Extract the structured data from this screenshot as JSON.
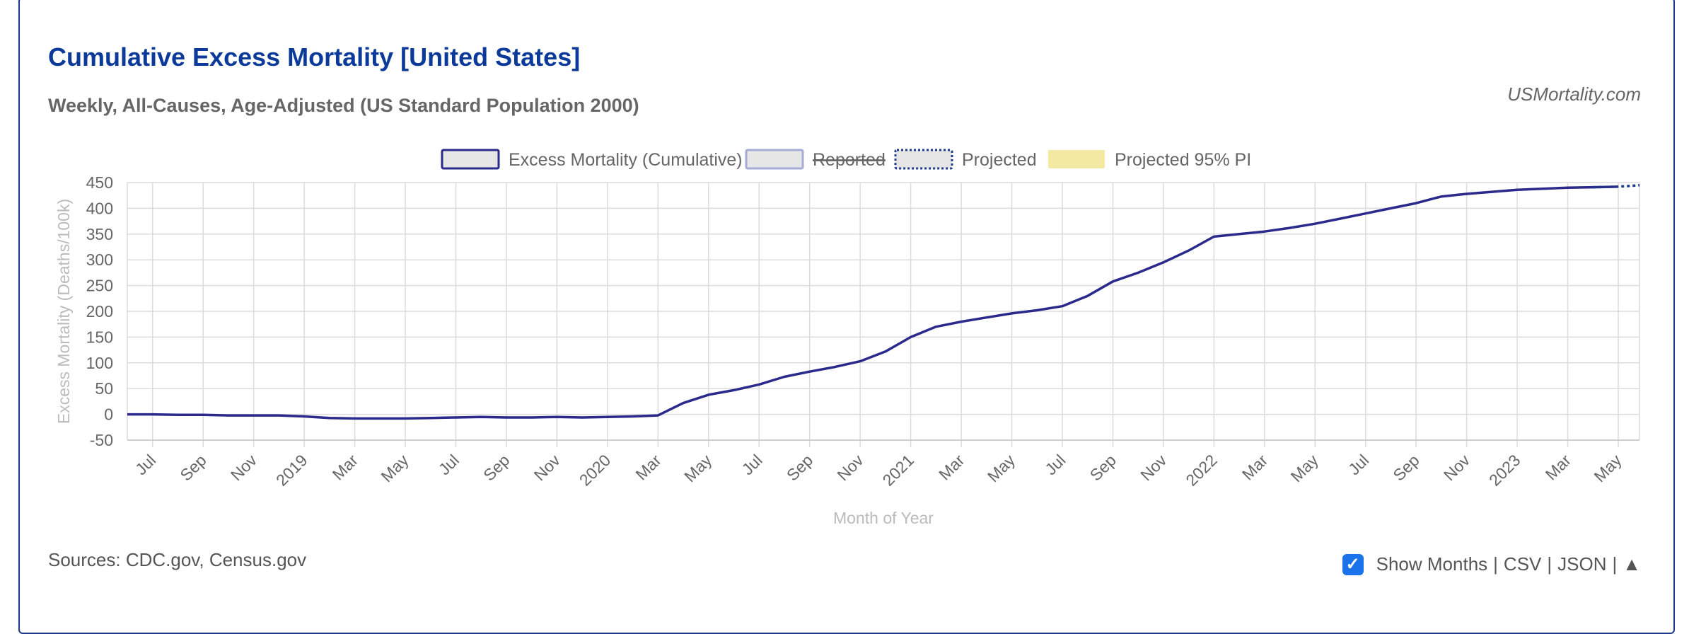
{
  "header": {
    "title": "Cumulative Excess Mortality [United States]",
    "subtitle": "Weekly, All-Causes, Age-Adjusted (US Standard Population 2000)",
    "brand": "USMortality.com"
  },
  "footer": {
    "sources": "Sources: CDC.gov, Census.gov",
    "show_months_label": "Show Months",
    "sep1": "|",
    "csv_label": "CSV",
    "sep2": "|",
    "json_label": "JSON",
    "sep3": "|",
    "up_label": "▲",
    "check_glyph": "✓"
  },
  "chart_data": {
    "type": "line",
    "title": "Cumulative Excess Mortality [United States]",
    "xlabel": "Month of Year",
    "ylabel": "Excess Mortality (Deaths/100k)",
    "ylim": [
      -50,
      450
    ],
    "yticks": [
      450,
      400,
      350,
      300,
      250,
      200,
      150,
      100,
      50,
      0,
      -50
    ],
    "xticks": [
      "Jul",
      "Sep",
      "Nov",
      "2019",
      "Mar",
      "May",
      "Jul",
      "Sep",
      "Nov",
      "2020",
      "Mar",
      "May",
      "Jul",
      "Sep",
      "Nov",
      "2021",
      "Mar",
      "May",
      "Jul",
      "Sep",
      "Nov",
      "2022",
      "Mar",
      "May",
      "Jul",
      "Sep",
      "Nov",
      "2023",
      "Mar",
      "May"
    ],
    "grid": true,
    "legend_position": "top",
    "legend": [
      {
        "label": "Excess Mortality (Cumulative)",
        "style": "solid",
        "color": "#2b2a8c"
      },
      {
        "label": "Reported",
        "style": "solid-light",
        "color": "#a7acd6",
        "hidden": true
      },
      {
        "label": "Projected",
        "style": "dotted",
        "color": "#1f3a8a"
      },
      {
        "label": "Projected 95% PI",
        "style": "fill",
        "color": "#f3e9a3"
      }
    ],
    "series": [
      {
        "name": "Excess Mortality (Cumulative)",
        "color": "#2b2a8c",
        "x": [
          "2018-06",
          "2018-07",
          "2018-08",
          "2018-09",
          "2018-10",
          "2018-11",
          "2018-12",
          "2019-01",
          "2019-02",
          "2019-03",
          "2019-04",
          "2019-05",
          "2019-06",
          "2019-07",
          "2019-08",
          "2019-09",
          "2019-10",
          "2019-11",
          "2019-12",
          "2020-01",
          "2020-02",
          "2020-03",
          "2020-04",
          "2020-05",
          "2020-06",
          "2020-07",
          "2020-08",
          "2020-09",
          "2020-10",
          "2020-11",
          "2020-12",
          "2021-01",
          "2021-02",
          "2021-03",
          "2021-04",
          "2021-05",
          "2021-06",
          "2021-07",
          "2021-08",
          "2021-09",
          "2021-10",
          "2021-11",
          "2021-12",
          "2022-01",
          "2022-02",
          "2022-03",
          "2022-04",
          "2022-05",
          "2022-06",
          "2022-07",
          "2022-08",
          "2022-09",
          "2022-10",
          "2022-11",
          "2022-12",
          "2023-01",
          "2023-02",
          "2023-03",
          "2023-04",
          "2023-05"
        ],
        "values": [
          0,
          0,
          -1,
          -1,
          -2,
          -2,
          -2,
          -4,
          -7,
          -8,
          -8,
          -8,
          -7,
          -6,
          -5,
          -6,
          -6,
          -5,
          -6,
          -5,
          -4,
          -2,
          22,
          38,
          47,
          58,
          73,
          83,
          92,
          103,
          122,
          150,
          170,
          180,
          188,
          196,
          202,
          210,
          230,
          258,
          275,
          295,
          318,
          345,
          350,
          355,
          362,
          370,
          380,
          390,
          400,
          410,
          423,
          428,
          432,
          436,
          438,
          440,
          441,
          442
        ]
      },
      {
        "name": "Projected",
        "color": "#1f3a8a",
        "dashed": true,
        "x": [
          "2023-04",
          "2023-05"
        ],
        "values": [
          441,
          442
        ]
      }
    ]
  }
}
